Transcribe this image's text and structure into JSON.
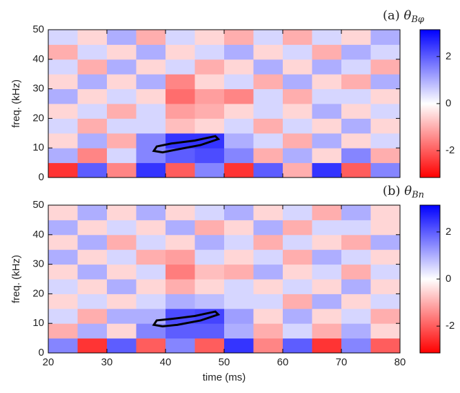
{
  "chart_data": [
    {
      "type": "heatmap",
      "title": "(a)",
      "title_symbol": "θ",
      "title_subscript": "Bφ",
      "ylabel": "freq. (kHz)",
      "x": [
        22.5,
        27.5,
        32.5,
        37.5,
        42.5,
        47.5,
        52.5,
        57.5,
        62.5,
        67.5,
        72.5,
        77.5
      ],
      "y": [
        2.5,
        7.5,
        12.5,
        17.5,
        22.5,
        27.5,
        32.5,
        37.5,
        42.5,
        47.5
      ],
      "z": [
        [
          -2.5,
          2,
          -1.5,
          2.5,
          -2,
          1.5,
          -2.5,
          2,
          -1,
          2.5,
          -2,
          1.5
        ],
        [
          1,
          -1.5,
          0.5,
          1.5,
          2,
          2.2,
          1.5,
          -1,
          1,
          -0.5,
          1.5,
          -1
        ],
        [
          -0.5,
          1,
          -1,
          1.5,
          2.5,
          2.5,
          1,
          0.5,
          -1,
          1,
          -0.5,
          0.5
        ],
        [
          0.5,
          -1,
          0.5,
          0.5,
          -0.8,
          -0.5,
          0.5,
          -1,
          0.5,
          -0.5,
          1,
          -0.5
        ],
        [
          -0.5,
          0.5,
          -1,
          0.5,
          -1.2,
          -1,
          -0.5,
          0.5,
          -0.5,
          1,
          -0.5,
          0.5
        ],
        [
          1,
          -0.5,
          0.5,
          -0.5,
          -1.8,
          -1.2,
          -1.5,
          0.5,
          -1,
          0.5,
          0.5,
          -0.5
        ],
        [
          -0.5,
          1,
          -0.5,
          1,
          -1.5,
          -0.5,
          0.5,
          -1,
          1,
          -0.5,
          -1,
          1
        ],
        [
          0.5,
          -1,
          1,
          -0.5,
          0.5,
          -1,
          -0.5,
          1,
          -0.5,
          1,
          0.5,
          -1
        ],
        [
          -1,
          0.5,
          -0.5,
          1,
          -0.5,
          0.5,
          1,
          -0.5,
          0.5,
          -1,
          1,
          0.5
        ],
        [
          0.5,
          -0.5,
          1,
          -1,
          0.5,
          -0.5,
          -1,
          0.5,
          -1,
          0.5,
          -0.5,
          1
        ]
      ],
      "contour_x": [
        38,
        38.5,
        41,
        45,
        48.5,
        49,
        46,
        42,
        39.5,
        38
      ],
      "contour_y": [
        9,
        10.5,
        11.5,
        12.5,
        14,
        13,
        11,
        9.5,
        8.5,
        9
      ],
      "xlim": [
        20,
        80
      ],
      "ylim": [
        0,
        50
      ],
      "xticks": [
        20,
        30,
        40,
        50,
        60,
        70,
        80
      ],
      "yticks": [
        0,
        10,
        20,
        30,
        40,
        50
      ],
      "show_xtick_labels": false,
      "clim": [
        -3.14,
        3.14
      ],
      "cticks": [
        -2,
        0,
        2
      ],
      "colormap": [
        "#ff0000",
        "#ffffff",
        "#0000ff"
      ]
    },
    {
      "type": "heatmap",
      "title": "(b)",
      "title_symbol": "θ",
      "title_subscript": "Bn",
      "ylabel": "freq. (kHz)",
      "xlabel": "time (ms)",
      "x": [
        22.5,
        27.5,
        32.5,
        37.5,
        42.5,
        47.5,
        52.5,
        57.5,
        62.5,
        67.5,
        72.5,
        77.5
      ],
      "y": [
        2.5,
        7.5,
        12.5,
        17.5,
        22.5,
        27.5,
        32.5,
        37.5,
        42.5,
        47.5
      ],
      "z": [
        [
          1.5,
          -2.5,
          2,
          -2,
          1.5,
          -2,
          2.5,
          -1.5,
          2,
          -2.5,
          1.5,
          -2
        ],
        [
          -1,
          1,
          -0.5,
          1.5,
          2,
          2,
          1,
          -1,
          0.5,
          -1,
          1,
          -0.5
        ],
        [
          0.5,
          -1,
          1,
          1,
          2.2,
          2.3,
          1.2,
          -0.5,
          1,
          -0.5,
          0.5,
          -1
        ],
        [
          -0.5,
          0.5,
          -0.5,
          0.5,
          1,
          0.8,
          0.5,
          0.5,
          -1,
          1,
          -0.5,
          0.5
        ],
        [
          0.5,
          -0.5,
          1,
          -0.5,
          -1,
          -0.5,
          0.5,
          -0.5,
          0.5,
          -0.5,
          1,
          -0.5
        ],
        [
          -0.5,
          1,
          -0.5,
          0.5,
          -1.6,
          -0.8,
          -1,
          1,
          -0.5,
          0.5,
          -1,
          0.5
        ],
        [
          1,
          -0.5,
          0.5,
          -1,
          -1.2,
          0.5,
          -0.5,
          0.5,
          -1,
          1,
          0.5,
          -0.5
        ],
        [
          -0.5,
          1,
          -1,
          0.5,
          -0.5,
          1,
          0.5,
          -1,
          0.5,
          -0.5,
          -1,
          1
        ],
        [
          1,
          -0.5,
          0.5,
          -0.5,
          1,
          -1,
          -0.5,
          1,
          -1,
          0.5,
          0.5,
          -0.5
        ],
        [
          -0.5,
          1,
          -0.5,
          1,
          -0.5,
          0.5,
          1,
          -0.5,
          0.5,
          -1,
          1,
          -0.5
        ]
      ],
      "contour_x": [
        38,
        38.5,
        41,
        45,
        48.5,
        49,
        46,
        42,
        39.5,
        38
      ],
      "contour_y": [
        9.5,
        11,
        11.5,
        12.5,
        14,
        13,
        11,
        9.5,
        9,
        9.5
      ],
      "xlim": [
        20,
        80
      ],
      "ylim": [
        0,
        50
      ],
      "xticks": [
        20,
        30,
        40,
        50,
        60,
        70,
        80
      ],
      "yticks": [
        0,
        10,
        20,
        30,
        40,
        50
      ],
      "show_xtick_labels": true,
      "clim": [
        -3.14,
        3.14
      ],
      "cticks": [
        -2,
        0,
        2
      ],
      "colormap": [
        "#ff0000",
        "#ffffff",
        "#0000ff"
      ]
    }
  ]
}
